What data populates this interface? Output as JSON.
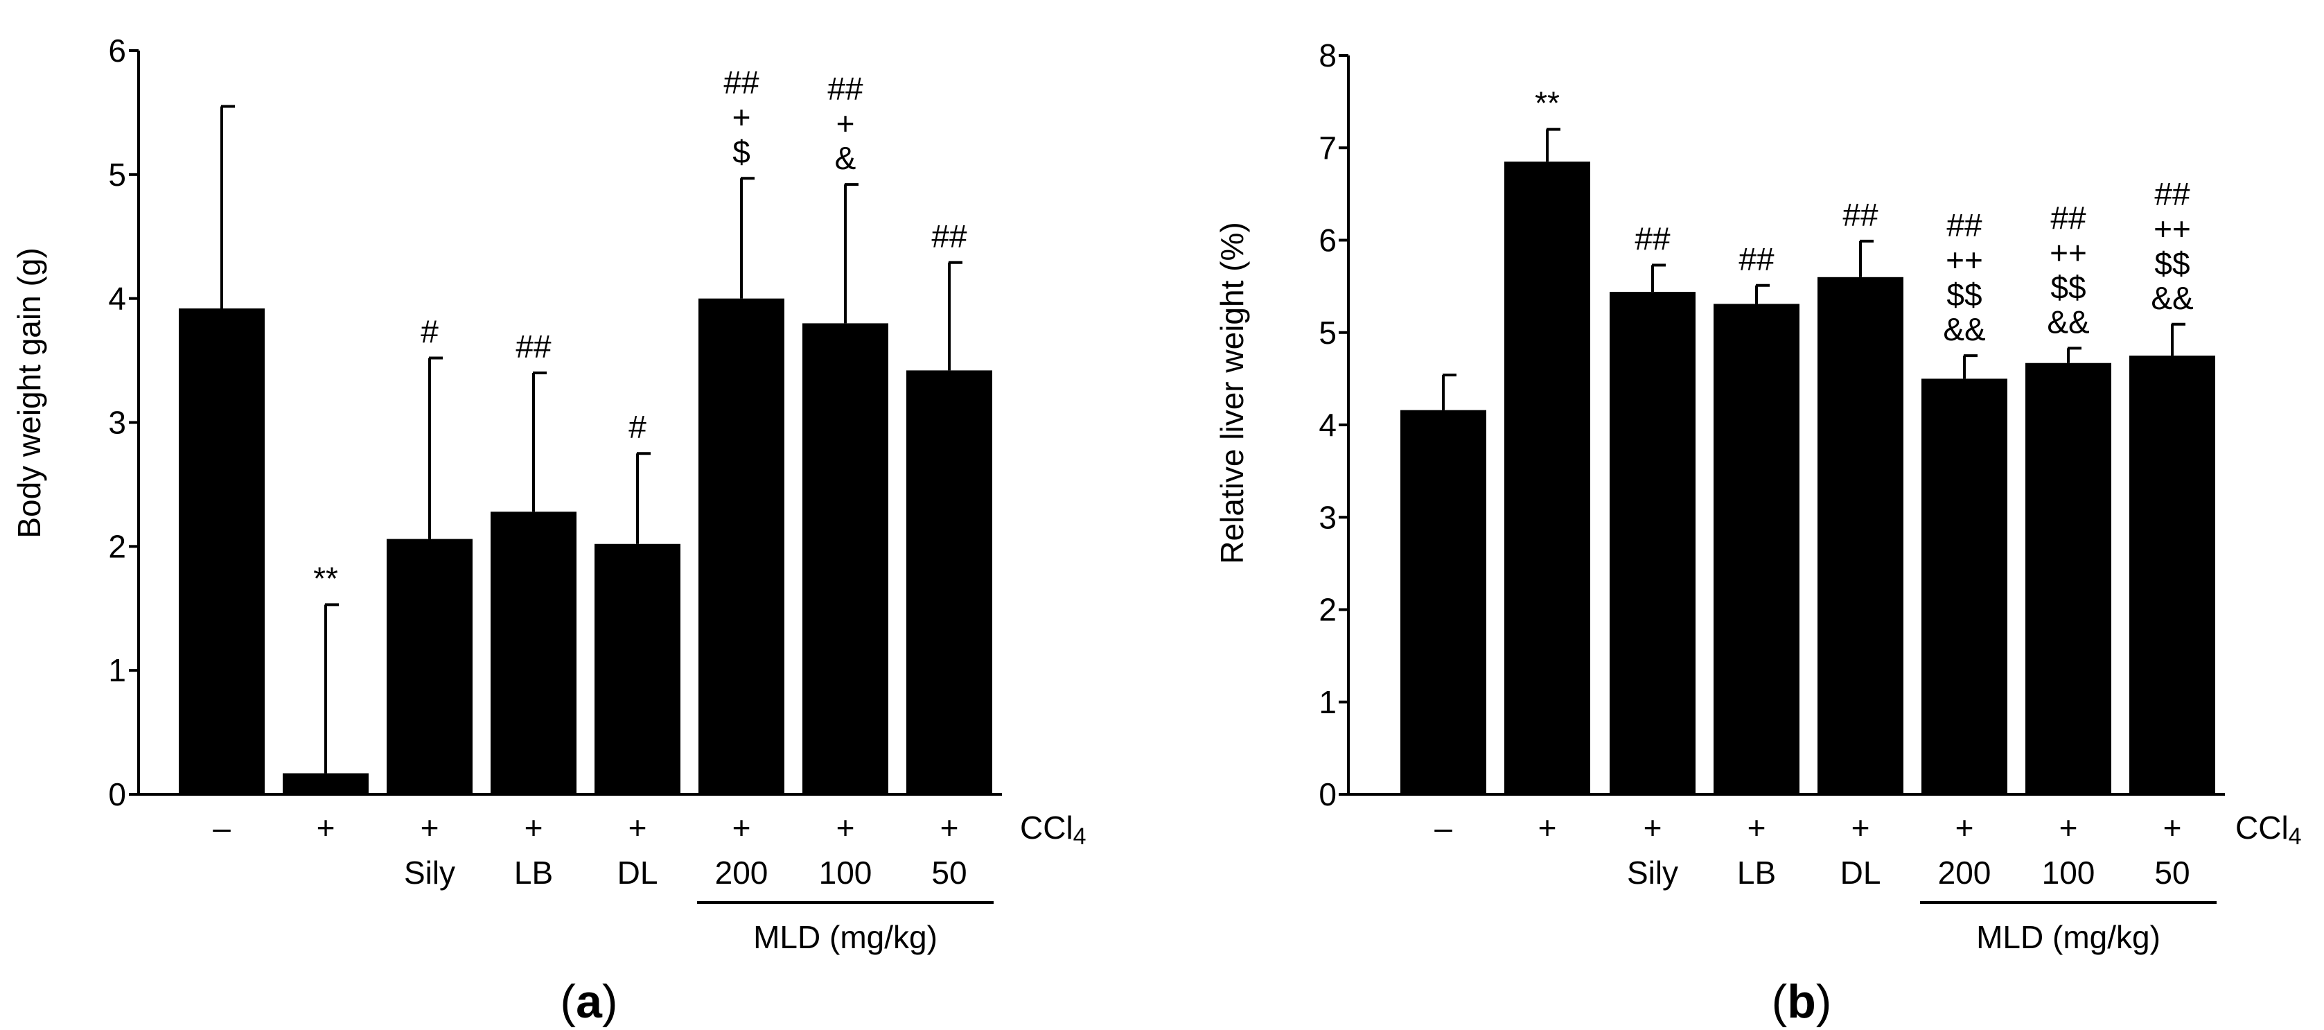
{
  "figure": {
    "background": "#ffffff",
    "bar_color": "#000000"
  },
  "chart_data": [
    {
      "type": "bar",
      "panel_label": "a",
      "title": "",
      "ylabel": "Body weight gain (g)",
      "xlabel": "",
      "ylim": [
        0,
        6
      ],
      "yticks": [
        0,
        1,
        2,
        3,
        4,
        5,
        6
      ],
      "ccl4_row": [
        "–",
        "+",
        "+",
        "+",
        "+",
        "+",
        "+",
        "+"
      ],
      "ccl4_label": "CCl",
      "ccl4_subscript": "4",
      "categories": [
        "",
        "",
        "Sily",
        "LB",
        "DL",
        "200",
        "100",
        "50"
      ],
      "group_bracket": {
        "label": "MLD (mg/kg)",
        "from_index": 5,
        "to_index": 7
      },
      "values": [
        3.92,
        0.17,
        2.06,
        2.28,
        2.02,
        4.0,
        3.8,
        3.42
      ],
      "errors": [
        1.63,
        1.36,
        1.46,
        1.12,
        0.73,
        0.97,
        1.12,
        0.87
      ],
      "significance": [
        [],
        [
          "**"
        ],
        [
          "#"
        ],
        [
          "##"
        ],
        [
          "#"
        ],
        [
          "##",
          "+",
          "$"
        ],
        [
          "##",
          "+",
          "&"
        ],
        [
          "##"
        ]
      ]
    },
    {
      "type": "bar",
      "panel_label": "b",
      "title": "",
      "ylabel": "Relative liver weight (%)",
      "xlabel": "",
      "ylim": [
        0,
        8
      ],
      "yticks": [
        0,
        1,
        2,
        3,
        4,
        5,
        6,
        7,
        8
      ],
      "ccl4_row": [
        "–",
        "+",
        "+",
        "+",
        "+",
        "+",
        "+",
        "+"
      ],
      "ccl4_label": "CCl",
      "ccl4_subscript": "4",
      "categories": [
        "",
        "",
        "Sily",
        "LB",
        "DL",
        "200",
        "100",
        "50"
      ],
      "group_bracket": {
        "label": "MLD (mg/kg)",
        "from_index": 5,
        "to_index": 7
      },
      "values": [
        4.16,
        6.85,
        5.44,
        5.31,
        5.6,
        4.5,
        4.67,
        4.75
      ],
      "errors": [
        0.38,
        0.35,
        0.29,
        0.2,
        0.39,
        0.25,
        0.16,
        0.34
      ],
      "significance": [
        [],
        [
          "**"
        ],
        [
          "##"
        ],
        [
          "##"
        ],
        [
          "##"
        ],
        [
          "##",
          "++",
          "$$",
          "&&"
        ],
        [
          "##",
          "++",
          "$$",
          "&&"
        ],
        [
          "##",
          "++",
          "$$",
          "&&"
        ]
      ]
    }
  ]
}
